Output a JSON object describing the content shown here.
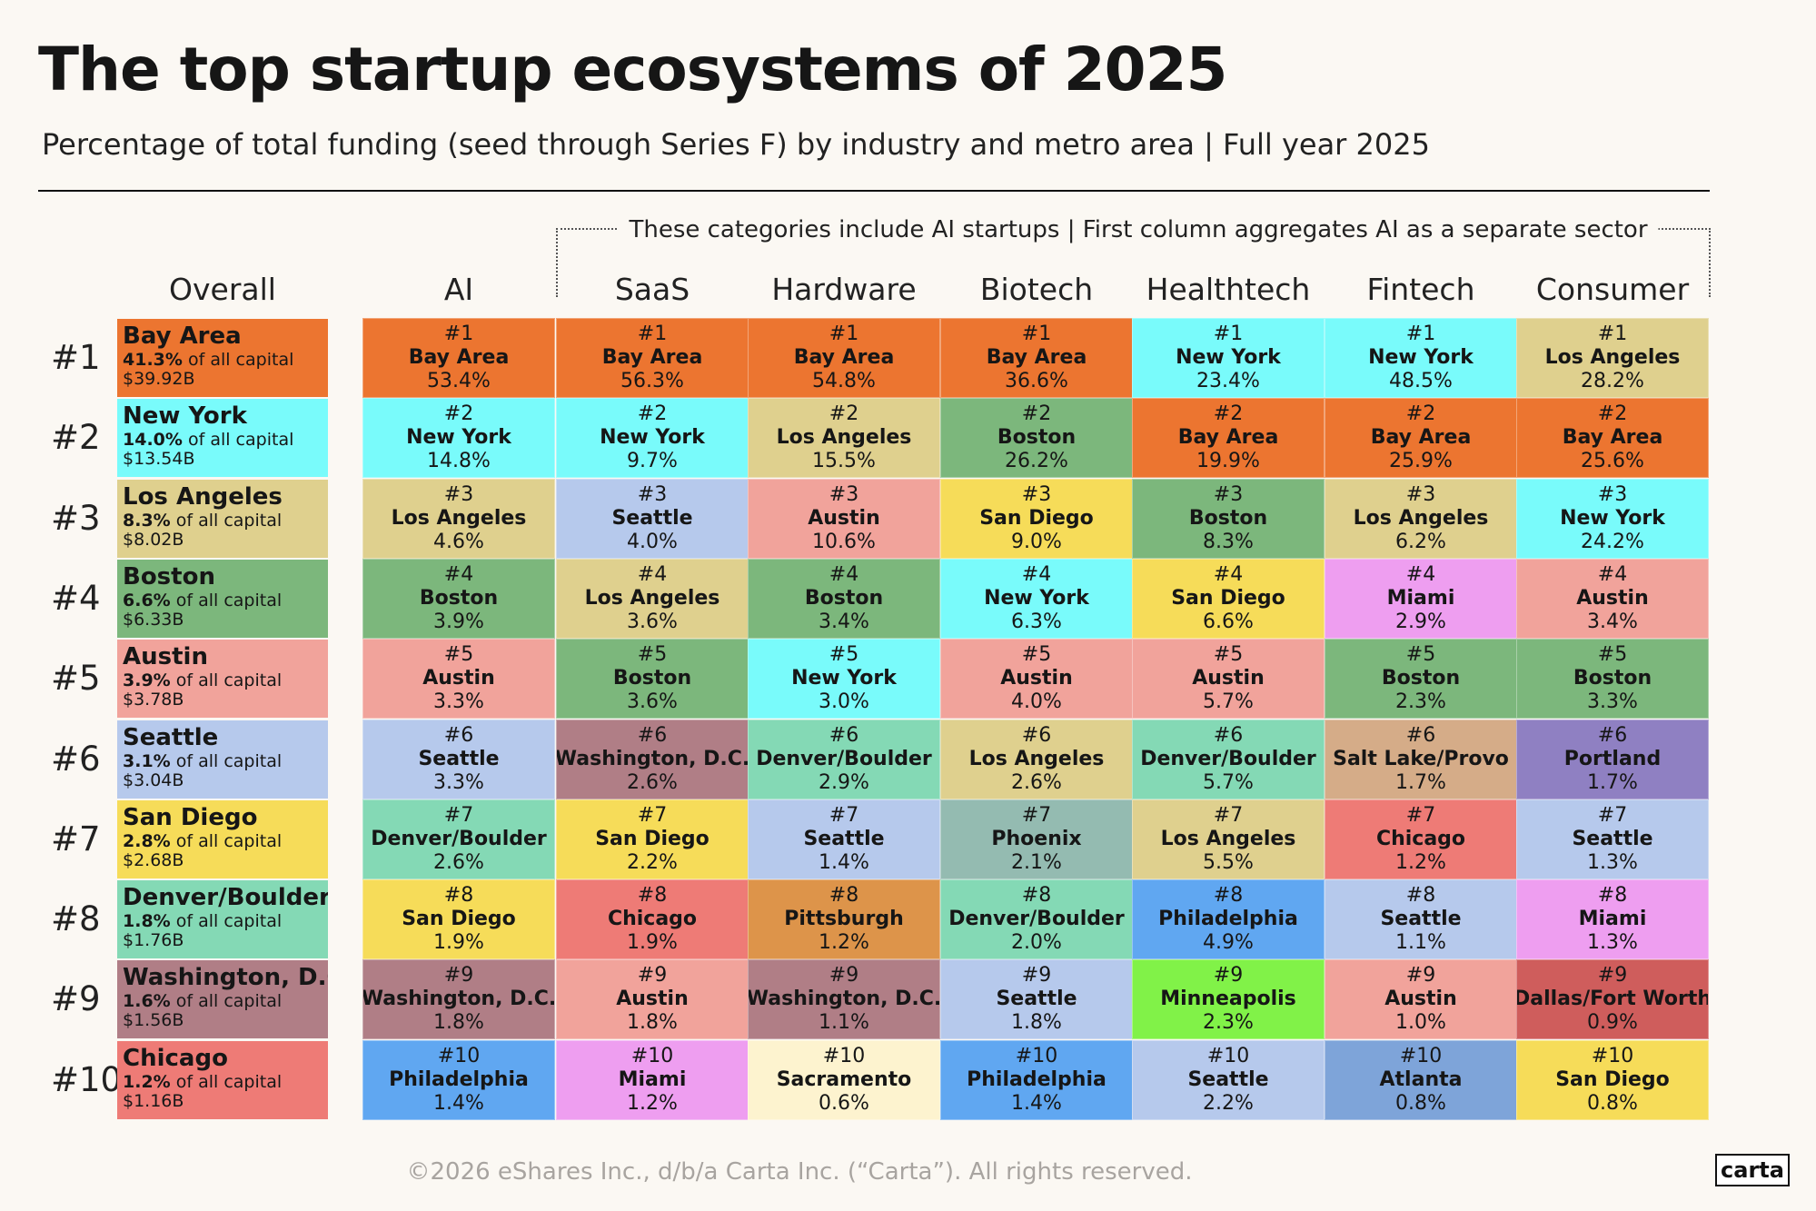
{
  "colors": {
    "Bay Area": "#ec7530",
    "New York": "#79fbfb",
    "Los Angeles": "#dfd08e",
    "Boston": "#7cb77c",
    "Austin": "#f1a39b",
    "Seattle": "#b6c9ec",
    "San Diego": "#f6dc59",
    "Denver/Boulder": "#84d9b5",
    "Washington, D.C.": "#b07e86",
    "Chicago": "#ee7b76",
    "Philadelphia": "#60a7f1",
    "Miami": "#ee9ef0",
    "Pittsburgh": "#dd944a",
    "Sacramento": "#fdf3cf",
    "Phoenix": "#94bbb1",
    "Minneapolis": "#81f248",
    "Salt Lake/Provo": "#d5ac88",
    "Atlanta": "#7ea4d9",
    "Portland": "#8f80c2",
    "Dallas/Fort Worth": "#cf5d5c"
  },
  "chart_data": {
    "type": "table",
    "title": "The top startup ecosystems of 2025",
    "subtitle": "Percentage of total funding (seed through Series F) by industry and metro area | Full year 2025",
    "bracket_note": "These categories include AI startups | First column aggregates AI as a separate sector",
    "overall_header": "Overall",
    "ranks": [
      "#1",
      "#2",
      "#3",
      "#4",
      "#5",
      "#6",
      "#7",
      "#8",
      "#9",
      "#10"
    ],
    "overall": [
      {
        "city": "Bay Area",
        "share": "41.3%",
        "suffix": "of all capital",
        "amount": "$39.92B"
      },
      {
        "city": "New York",
        "share": "14.0%",
        "suffix": "of all capital",
        "amount": "$13.54B"
      },
      {
        "city": "Los Angeles",
        "share": "8.3%",
        "suffix": "of all capital",
        "amount": "$8.02B"
      },
      {
        "city": "Boston",
        "share": "6.6%",
        "suffix": "of all capital",
        "amount": "$6.33B"
      },
      {
        "city": "Austin",
        "share": "3.9%",
        "suffix": "of all capital",
        "amount": "$3.78B"
      },
      {
        "city": "Seattle",
        "share": "3.1%",
        "suffix": "of all capital",
        "amount": "$3.04B"
      },
      {
        "city": "San Diego",
        "share": "2.8%",
        "suffix": "of all capital",
        "amount": "$2.68B"
      },
      {
        "city": "Denver/Boulder",
        "share": "1.8%",
        "suffix": "of all capital",
        "amount": "$1.76B"
      },
      {
        "city": "Washington, D.C.",
        "share": "1.6%",
        "suffix": "of all capital",
        "amount": "$1.56B"
      },
      {
        "city": "Chicago",
        "share": "1.2%",
        "suffix": "of all capital",
        "amount": "$1.16B"
      }
    ],
    "columns": [
      {
        "name": "AI",
        "rows": [
          {
            "rank": "#1",
            "city": "Bay Area",
            "value": "53.4%"
          },
          {
            "rank": "#2",
            "city": "New York",
            "value": "14.8%"
          },
          {
            "rank": "#3",
            "city": "Los Angeles",
            "value": "4.6%"
          },
          {
            "rank": "#4",
            "city": "Boston",
            "value": "3.9%"
          },
          {
            "rank": "#5",
            "city": "Austin",
            "value": "3.3%"
          },
          {
            "rank": "#6",
            "city": "Seattle",
            "value": "3.3%"
          },
          {
            "rank": "#7",
            "city": "Denver/Boulder",
            "value": "2.6%"
          },
          {
            "rank": "#8",
            "city": "San Diego",
            "value": "1.9%"
          },
          {
            "rank": "#9",
            "city": "Washington, D.C.",
            "value": "1.8%"
          },
          {
            "rank": "#10",
            "city": "Philadelphia",
            "value": "1.4%"
          }
        ]
      },
      {
        "name": "SaaS",
        "rows": [
          {
            "rank": "#1",
            "city": "Bay Area",
            "value": "56.3%"
          },
          {
            "rank": "#2",
            "city": "New York",
            "value": "9.7%"
          },
          {
            "rank": "#3",
            "city": "Seattle",
            "value": "4.0%"
          },
          {
            "rank": "#4",
            "city": "Los Angeles",
            "value": "3.6%"
          },
          {
            "rank": "#5",
            "city": "Boston",
            "value": "3.6%"
          },
          {
            "rank": "#6",
            "city": "Washington, D.C.",
            "value": "2.6%"
          },
          {
            "rank": "#7",
            "city": "San Diego",
            "value": "2.2%"
          },
          {
            "rank": "#8",
            "city": "Chicago",
            "value": "1.9%"
          },
          {
            "rank": "#9",
            "city": "Austin",
            "value": "1.8%"
          },
          {
            "rank": "#10",
            "city": "Miami",
            "value": "1.2%"
          }
        ]
      },
      {
        "name": "Hardware",
        "rows": [
          {
            "rank": "#1",
            "city": "Bay Area",
            "value": "54.8%"
          },
          {
            "rank": "#2",
            "city": "Los Angeles",
            "value": "15.5%"
          },
          {
            "rank": "#3",
            "city": "Austin",
            "value": "10.6%"
          },
          {
            "rank": "#4",
            "city": "Boston",
            "value": "3.4%"
          },
          {
            "rank": "#5",
            "city": "New York",
            "value": "3.0%"
          },
          {
            "rank": "#6",
            "city": "Denver/Boulder",
            "value": "2.9%"
          },
          {
            "rank": "#7",
            "city": "Seattle",
            "value": "1.4%"
          },
          {
            "rank": "#8",
            "city": "Pittsburgh",
            "value": "1.2%"
          },
          {
            "rank": "#9",
            "city": "Washington, D.C.",
            "value": "1.1%"
          },
          {
            "rank": "#10",
            "city": "Sacramento",
            "value": "0.6%"
          }
        ]
      },
      {
        "name": "Biotech",
        "rows": [
          {
            "rank": "#1",
            "city": "Bay Area",
            "value": "36.6%"
          },
          {
            "rank": "#2",
            "city": "Boston",
            "value": "26.2%"
          },
          {
            "rank": "#3",
            "city": "San Diego",
            "value": "9.0%"
          },
          {
            "rank": "#4",
            "city": "New York",
            "value": "6.3%"
          },
          {
            "rank": "#5",
            "city": "Austin",
            "value": "4.0%"
          },
          {
            "rank": "#6",
            "city": "Los Angeles",
            "value": "2.6%"
          },
          {
            "rank": "#7",
            "city": "Phoenix",
            "value": "2.1%"
          },
          {
            "rank": "#8",
            "city": "Denver/Boulder",
            "value": "2.0%"
          },
          {
            "rank": "#9",
            "city": "Seattle",
            "value": "1.8%"
          },
          {
            "rank": "#10",
            "city": "Philadelphia",
            "value": "1.4%"
          }
        ]
      },
      {
        "name": "Healthtech",
        "rows": [
          {
            "rank": "#1",
            "city": "New York",
            "value": "23.4%"
          },
          {
            "rank": "#2",
            "city": "Bay Area",
            "value": "19.9%"
          },
          {
            "rank": "#3",
            "city": "Boston",
            "value": "8.3%"
          },
          {
            "rank": "#4",
            "city": "San Diego",
            "value": "6.6%"
          },
          {
            "rank": "#5",
            "city": "Austin",
            "value": "5.7%"
          },
          {
            "rank": "#6",
            "city": "Denver/Boulder",
            "value": "5.7%"
          },
          {
            "rank": "#7",
            "city": "Los Angeles",
            "value": "5.5%"
          },
          {
            "rank": "#8",
            "city": "Philadelphia",
            "value": "4.9%"
          },
          {
            "rank": "#9",
            "city": "Minneapolis",
            "value": "2.3%"
          },
          {
            "rank": "#10",
            "city": "Seattle",
            "value": "2.2%"
          }
        ]
      },
      {
        "name": "Fintech",
        "rows": [
          {
            "rank": "#1",
            "city": "New York",
            "value": "48.5%"
          },
          {
            "rank": "#2",
            "city": "Bay Area",
            "value": "25.9%"
          },
          {
            "rank": "#3",
            "city": "Los Angeles",
            "value": "6.2%"
          },
          {
            "rank": "#4",
            "city": "Miami",
            "value": "2.9%"
          },
          {
            "rank": "#5",
            "city": "Boston",
            "value": "2.3%"
          },
          {
            "rank": "#6",
            "city": "Salt Lake/Provo",
            "value": "1.7%"
          },
          {
            "rank": "#7",
            "city": "Chicago",
            "value": "1.2%"
          },
          {
            "rank": "#8",
            "city": "Seattle",
            "value": "1.1%"
          },
          {
            "rank": "#9",
            "city": "Austin",
            "value": "1.0%"
          },
          {
            "rank": "#10",
            "city": "Atlanta",
            "value": "0.8%"
          }
        ]
      },
      {
        "name": "Consumer",
        "rows": [
          {
            "rank": "#1",
            "city": "Los Angeles",
            "value": "28.2%"
          },
          {
            "rank": "#2",
            "city": "Bay Area",
            "value": "25.6%"
          },
          {
            "rank": "#3",
            "city": "New York",
            "value": "24.2%"
          },
          {
            "rank": "#4",
            "city": "Austin",
            "value": "3.4%"
          },
          {
            "rank": "#5",
            "city": "Boston",
            "value": "3.3%"
          },
          {
            "rank": "#6",
            "city": "Portland",
            "value": "1.7%"
          },
          {
            "rank": "#7",
            "city": "Seattle",
            "value": "1.3%"
          },
          {
            "rank": "#8",
            "city": "Miami",
            "value": "1.3%"
          },
          {
            "rank": "#9",
            "city": "Dallas/Fort Worth",
            "value": "0.9%"
          },
          {
            "rank": "#10",
            "city": "San Diego",
            "value": "0.8%"
          }
        ]
      }
    ]
  },
  "footer": "©2026 eShares Inc., d/b/a Carta Inc. (“Carta”). All rights reserved.",
  "logo_text": "carta"
}
